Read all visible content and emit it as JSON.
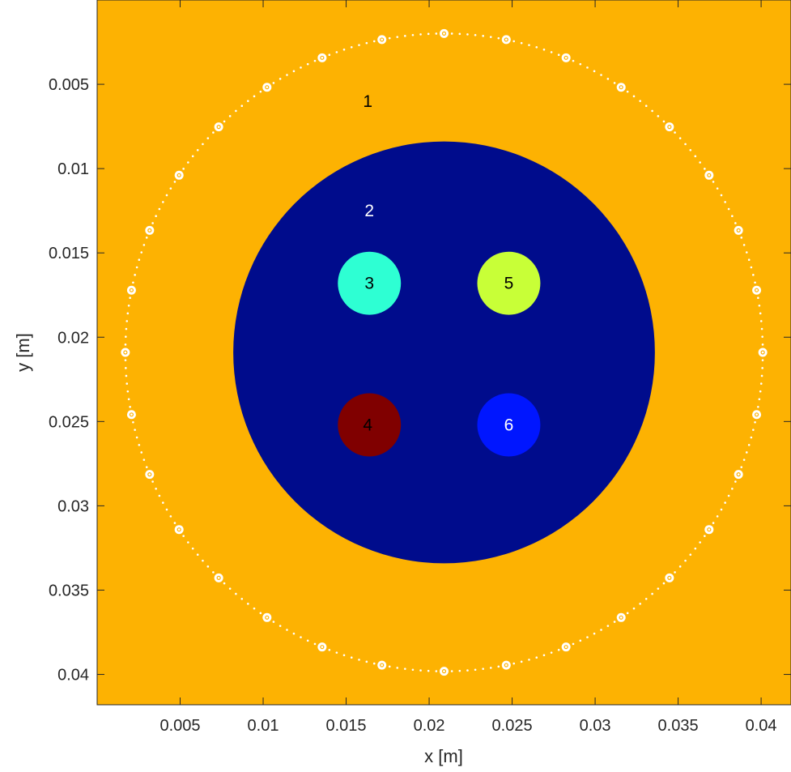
{
  "chart_data": {
    "type": "heatmap",
    "title": "",
    "xlabel": "x [m]",
    "ylabel": "y [m]",
    "xlim": [
      0.0,
      0.0418
    ],
    "ylim": [
      0.0,
      0.0418
    ],
    "y_axis_direction": "reversed",
    "grid": false,
    "xticks": [
      0.005,
      0.01,
      0.015,
      0.02,
      0.025,
      0.03,
      0.035,
      0.04
    ],
    "xtick_labels": [
      "0.005",
      "0.01",
      "0.015",
      "0.02",
      "0.025",
      "0.03",
      "0.035",
      "0.04"
    ],
    "yticks": [
      0.005,
      0.01,
      0.015,
      0.02,
      0.025,
      0.03,
      0.035,
      0.04
    ],
    "ytick_labels": [
      "0.005",
      "0.01",
      "0.015",
      "0.02",
      "0.025",
      "0.03",
      "0.035",
      "0.04"
    ],
    "regions": [
      {
        "label": "1",
        "shape": "background",
        "color": "#FDB202",
        "label_x": 0.0163,
        "label_y": 0.006,
        "label_color": "#000000"
      },
      {
        "label": "2",
        "shape": "circle",
        "cx": 0.0209,
        "cy": 0.0209,
        "r": 0.0127,
        "color": "#000C8C",
        "label_x": 0.0164,
        "label_y": 0.0125,
        "label_color": "#ffffff"
      },
      {
        "label": "3",
        "shape": "circle",
        "cx": 0.0164,
        "cy": 0.0168,
        "r": 0.0019,
        "color": "#2EFFD3",
        "label_x": 0.0164,
        "label_y": 0.0168,
        "label_color": "#000000"
      },
      {
        "label": "4",
        "shape": "circle",
        "cx": 0.0164,
        "cy": 0.0252,
        "r": 0.0019,
        "color": "#800000",
        "label_x": 0.0163,
        "label_y": 0.0252,
        "label_color": "#000000"
      },
      {
        "label": "5",
        "shape": "circle",
        "cx": 0.0248,
        "cy": 0.0168,
        "r": 0.0019,
        "color": "#C8FF37",
        "label_x": 0.0248,
        "label_y": 0.0168,
        "label_color": "#000000"
      },
      {
        "label": "6",
        "shape": "circle",
        "cx": 0.0248,
        "cy": 0.0252,
        "r": 0.0019,
        "color": "#0016FF",
        "label_x": 0.0248,
        "label_y": 0.0252,
        "label_color": "#ffffff"
      }
    ],
    "sensor_ring": {
      "cx": 0.0209,
      "cy": 0.0209,
      "r": 0.0192,
      "sensor_count": 32,
      "dot_count": 256,
      "color": "#ffffff"
    }
  }
}
